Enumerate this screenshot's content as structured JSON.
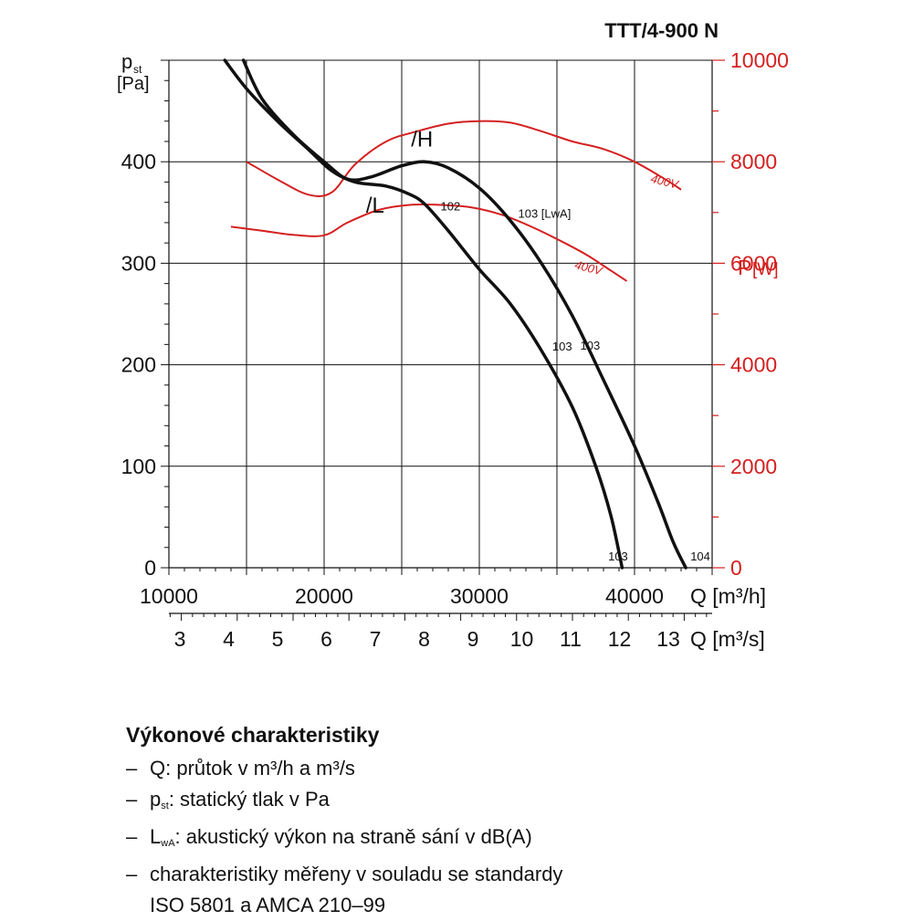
{
  "title": "TTT/4-900 N",
  "chart_data": {
    "type": "line",
    "title": "TTT/4-900 N",
    "x_top": {
      "label": "Q [m³/h]",
      "range": [
        10000,
        45000
      ],
      "ticks": [
        10000,
        20000,
        30000,
        40000
      ]
    },
    "x_bottom": {
      "label": "Q [m³/s]",
      "ticks": [
        3,
        4,
        5,
        6,
        7,
        8,
        9,
        10,
        11,
        12,
        13
      ]
    },
    "y_left": {
      "label_main": "p",
      "label_sub": "st",
      "label_unit": "[Pa]",
      "range": [
        0,
        500
      ],
      "ticks": [
        0,
        100,
        200,
        300,
        400
      ]
    },
    "y_right": {
      "label_main": "P",
      "label_unit": "[W]",
      "range": [
        0,
        10000
      ],
      "ticks": [
        0,
        2000,
        4000,
        6000,
        8000,
        10000
      ],
      "color": "#d42020"
    },
    "grid": true,
    "pressure_series": [
      {
        "name": "/H",
        "label_point": [
          25600,
          415
        ],
        "points": [
          [
            14800,
            500
          ],
          [
            16000,
            462
          ],
          [
            18000,
            427
          ],
          [
            20000,
            400
          ],
          [
            21500,
            383
          ],
          [
            23000,
            385
          ],
          [
            25000,
            396
          ],
          [
            26500,
            400
          ],
          [
            28000,
            394
          ],
          [
            30000,
            374
          ],
          [
            32000,
            342
          ],
          [
            34000,
            300
          ],
          [
            36000,
            248
          ],
          [
            38000,
            185
          ],
          [
            40000,
            120
          ],
          [
            41500,
            65
          ],
          [
            42500,
            25
          ],
          [
            43300,
            0
          ]
        ]
      },
      {
        "name": "/L",
        "label_point": [
          22700,
          350
        ],
        "points": [
          [
            13600,
            500
          ],
          [
            15000,
            472
          ],
          [
            17000,
            440
          ],
          [
            19000,
            412
          ],
          [
            20500,
            391
          ],
          [
            22000,
            380
          ],
          [
            24000,
            376
          ],
          [
            25500,
            368
          ],
          [
            26500,
            358
          ],
          [
            28000,
            332
          ],
          [
            30000,
            294
          ],
          [
            32000,
            260
          ],
          [
            34000,
            214
          ],
          [
            36000,
            158
          ],
          [
            37500,
            100
          ],
          [
            38500,
            50
          ],
          [
            39200,
            0
          ]
        ]
      }
    ],
    "power_series": [
      {
        "name": "400V",
        "color": "#d42020",
        "points": [
          [
            15000,
            8000
          ],
          [
            17000,
            7650
          ],
          [
            19000,
            7350
          ],
          [
            20500,
            7400
          ],
          [
            22000,
            7950
          ],
          [
            24000,
            8400
          ],
          [
            26000,
            8600
          ],
          [
            28000,
            8750
          ],
          [
            30000,
            8800
          ],
          [
            32000,
            8770
          ],
          [
            34000,
            8600
          ],
          [
            36000,
            8400
          ],
          [
            38000,
            8250
          ],
          [
            40000,
            8000
          ],
          [
            42000,
            7650
          ],
          [
            43000,
            7450
          ]
        ]
      },
      {
        "name": "400V",
        "color": "#d42020",
        "points": [
          [
            14000,
            6720
          ],
          [
            16000,
            6640
          ],
          [
            18000,
            6560
          ],
          [
            20000,
            6550
          ],
          [
            21500,
            6800
          ],
          [
            23500,
            7050
          ],
          [
            25500,
            7150
          ],
          [
            27500,
            7150
          ],
          [
            29500,
            7100
          ],
          [
            31500,
            6950
          ],
          [
            33500,
            6700
          ],
          [
            35500,
            6400
          ],
          [
            37000,
            6150
          ],
          [
            38500,
            5850
          ],
          [
            39500,
            5650
          ]
        ]
      }
    ],
    "annotations": [
      {
        "text": "/H",
        "x": 25600,
        "y": 415,
        "size": "large"
      },
      {
        "text": "/L",
        "x": 22700,
        "y": 350,
        "size": "large"
      },
      {
        "text": "102",
        "x": 27500,
        "y": 352,
        "size": "small"
      },
      {
        "text": "103 [LwA]",
        "x": 32500,
        "y": 345,
        "size": "small"
      },
      {
        "text": "103",
        "x": 34700,
        "y": 214,
        "size": "small"
      },
      {
        "text": "103",
        "x": 36500,
        "y": 215,
        "size": "small"
      },
      {
        "text": "103",
        "x": 38300,
        "y": 7,
        "size": "small"
      },
      {
        "text": "104",
        "x": 43600,
        "y": 7,
        "size": "small"
      }
    ],
    "power_labels": [
      {
        "text": "400V",
        "x": 41000,
        "y": 7600,
        "rotate": 14
      },
      {
        "text": "400V",
        "x": 36100,
        "y": 5900,
        "rotate": 14
      }
    ]
  },
  "legend": {
    "title": "Výkonové charakteristiky",
    "items": [
      {
        "pre": "Q: průtok v m³/h a m³/s"
      },
      {
        "pre": "p",
        "sub": "st",
        "post": ": statický tlak v Pa"
      },
      {
        "pre": "L",
        "sub": "wA",
        "post": ": akustický výkon na straně sání v dB(A)"
      },
      {
        "pre": "charakteristiky měřeny v souladu se standardy"
      }
    ],
    "continuation": "ISO 5801 a AMCA 210–99"
  }
}
